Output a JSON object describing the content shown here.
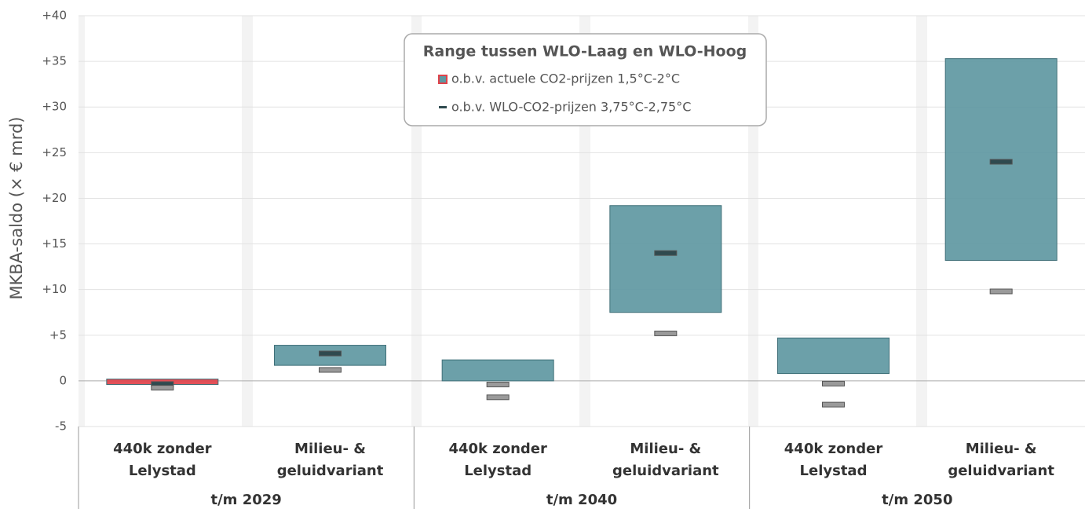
{
  "chart_data": {
    "type": "floating-bar",
    "y_label": "MKBA-saldo (× € mrd)",
    "legend_title": "Range tussen WLO-Laag en WLO-Hoog",
    "groups": [
      "t/m 2029",
      "t/m 2040",
      "t/m 2050"
    ],
    "categories": [
      [
        "440k zonder",
        "Lelystad"
      ],
      [
        "Milieu- &",
        "geluidvariant"
      ],
      [
        "440k zonder",
        "Lelystad"
      ],
      [
        "Milieu- &",
        "geluidvariant"
      ],
      [
        "440k zonder",
        "Lelystad"
      ],
      [
        "Milieu- &",
        "geluidvariant"
      ]
    ],
    "ranges": {
      "name": "o.b.v. actuele CO2-prijzen 1,5°C-2°C",
      "colors": [
        "#e0424a",
        "#5f98a2",
        "#5f98a2",
        "#5f98a2",
        "#5f98a2",
        "#5f98a2"
      ],
      "low": [
        -0.4,
        1.7,
        0,
        7.5,
        0.8,
        13.2
      ],
      "high": [
        0.2,
        3.9,
        2.3,
        19.2,
        4.7,
        35.3
      ]
    },
    "markers": [
      {
        "name": "o.b.v. WLO-CO2-prijzen 3,75°C-2,75°C",
        "color": "#2f4a4f",
        "values": [
          -0.35,
          3.0,
          null,
          14.0,
          null,
          24.0
        ]
      },
      {
        "color": "#9a9a9a",
        "values": [
          -0.75,
          1.2,
          -0.4,
          5.2,
          -0.3,
          9.8
        ]
      },
      {
        "color": "#9a9a9a",
        "values": [
          null,
          null,
          -1.8,
          null,
          -2.6,
          null
        ]
      }
    ],
    "ylim": [
      -5,
      40
    ],
    "yticks": [
      -5,
      0,
      {
        "value": 5,
        "label": "+5"
      },
      {
        "value": 10,
        "label": "+10"
      },
      {
        "value": 15,
        "label": "+15"
      },
      {
        "value": 20,
        "label": "+20"
      },
      {
        "value": 25,
        "label": "+25"
      },
      {
        "value": 30,
        "label": "+30"
      },
      {
        "value": 35,
        "label": "+35"
      },
      {
        "value": 40,
        "label": "+40"
      }
    ],
    "grid": true
  }
}
